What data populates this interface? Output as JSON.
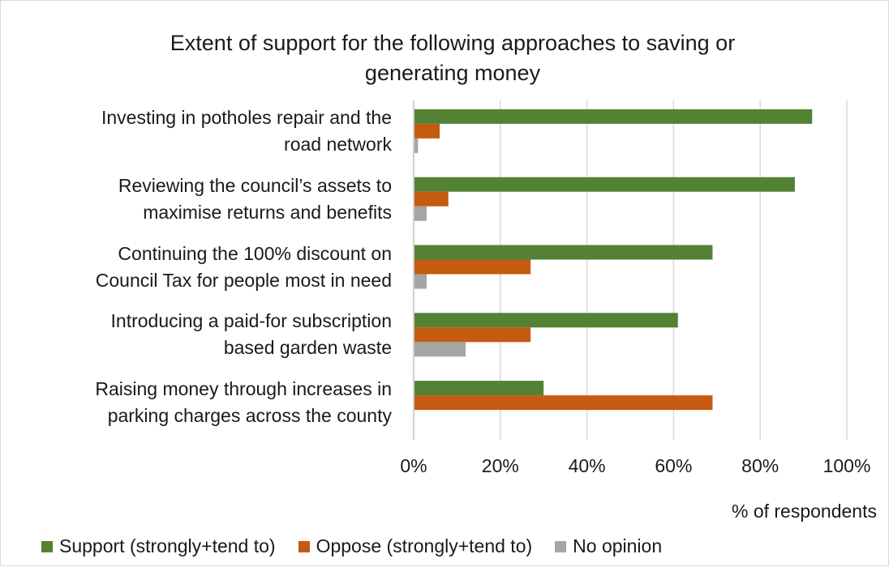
{
  "chart_data": {
    "type": "bar",
    "orientation": "horizontal",
    "title": "Extent of support for the following approaches to saving or generating money",
    "title_lines": [
      "Extent of support for the following approaches to saving or",
      "generating money"
    ],
    "categories": [
      "Investing in potholes repair and the road network",
      "Reviewing the council’s assets to maximise returns and benefits",
      "Continuing the 100% discount on Council Tax for people most in need",
      "Introducing a paid-for subscription based garden waste",
      "Raising money through increases in parking charges across the county"
    ],
    "category_lines": [
      [
        "Investing in potholes repair and the",
        "road network"
      ],
      [
        "Reviewing the council’s assets to",
        "maximise returns and benefits"
      ],
      [
        "Continuing the 100% discount on",
        "Council Tax for people most in need"
      ],
      [
        "Introducing a paid-for subscription",
        "based garden waste"
      ],
      [
        "Raising money through increases in",
        "parking charges across the county"
      ]
    ],
    "series": [
      {
        "name": "Support (strongly+tend to)",
        "color": "#548235",
        "values": [
          92,
          88,
          69,
          61,
          30
        ]
      },
      {
        "name": "Oppose (strongly+tend to)",
        "color": "#c55a11",
        "values": [
          6,
          8,
          27,
          27,
          69
        ]
      },
      {
        "name": "No opinion",
        "color": "#a5a5a5",
        "values": [
          1,
          3,
          3,
          12,
          0
        ]
      }
    ],
    "xlim": [
      0,
      100
    ],
    "x_ticks": [
      "0%",
      "20%",
      "40%",
      "60%",
      "80%",
      "100%"
    ],
    "xlabel": "% of respondents",
    "ylabel": "",
    "grid": true,
    "legend": "bottom"
  }
}
